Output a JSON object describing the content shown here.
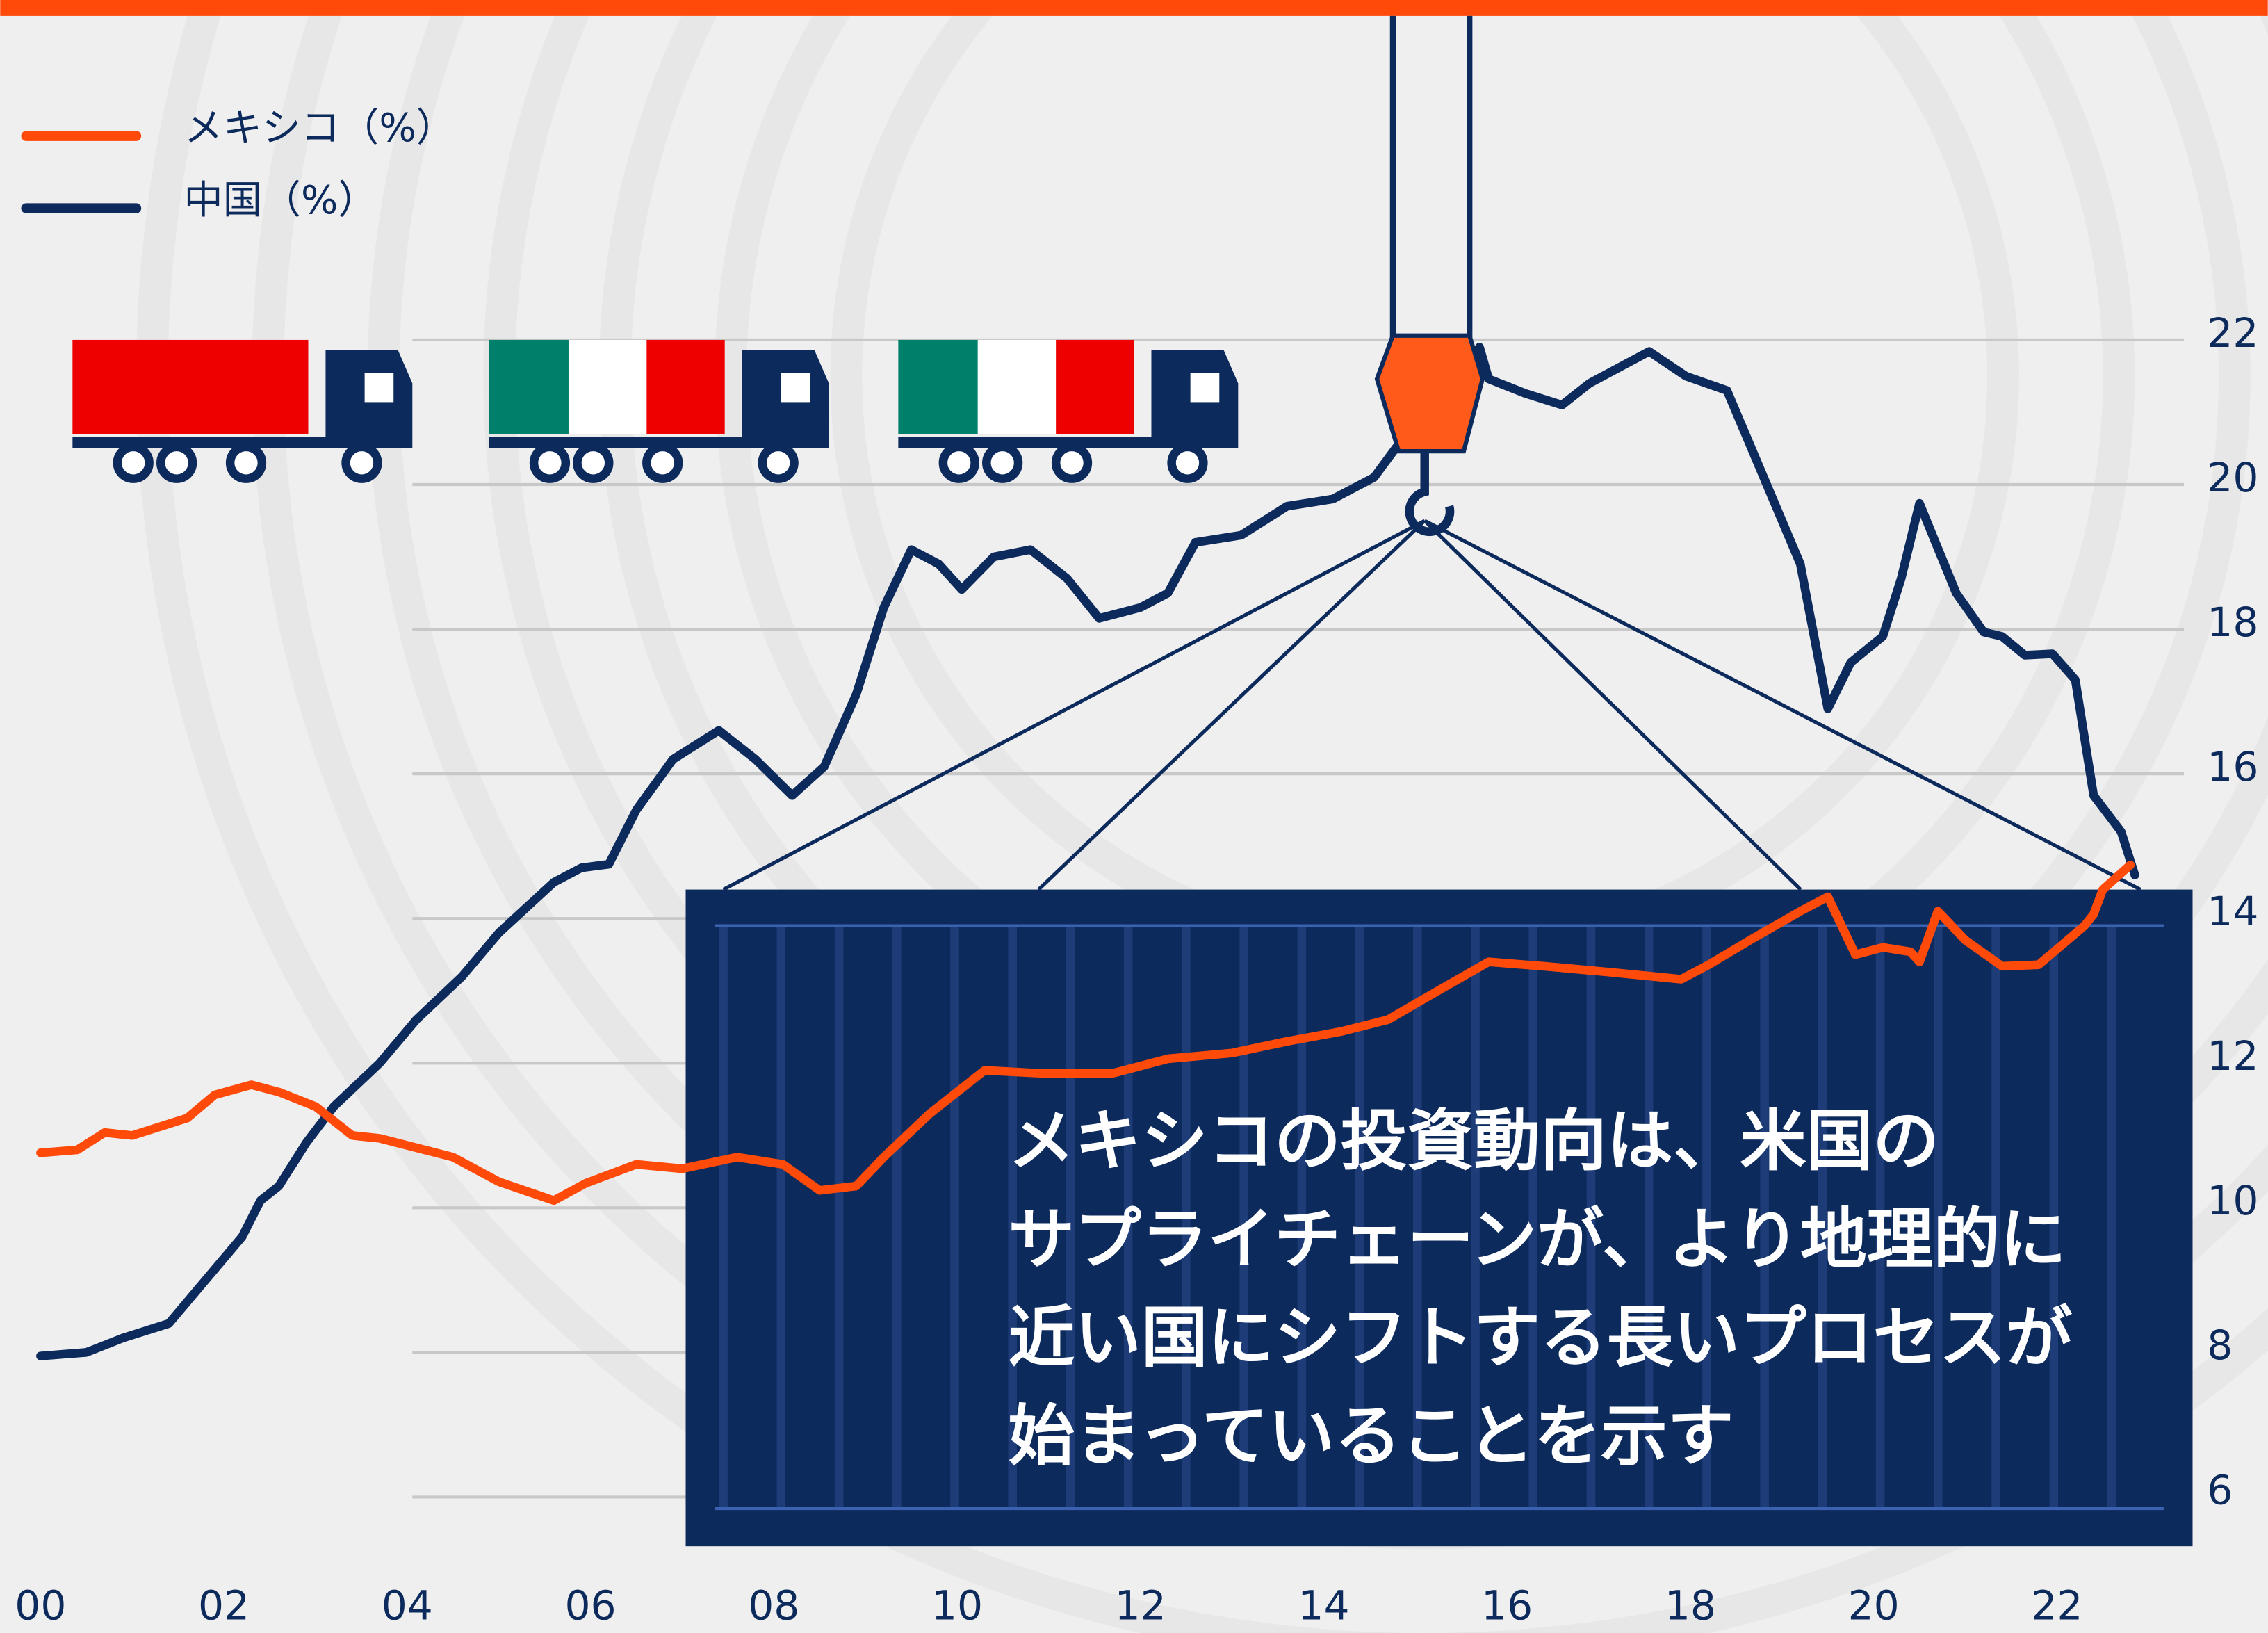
{
  "chart_data": {
    "type": "line",
    "annotation": [
      "メキシコの投資動向は、米国の",
      "サプライチェーンが、より地理的に",
      "近い国にシフトする長いプロセスが",
      "始まっていることを示す"
    ],
    "xlim": [
      1999.56,
      2024.3
    ],
    "ylim": [
      4.12,
      26.7
    ],
    "xticks": [
      {
        "value": 2000,
        "label": "00"
      },
      {
        "value": 2002,
        "label": "02"
      },
      {
        "value": 2004,
        "label": "04"
      },
      {
        "value": 2006,
        "label": "06"
      },
      {
        "value": 2008,
        "label": "08"
      },
      {
        "value": 2010,
        "label": "10"
      },
      {
        "value": 2012,
        "label": "12"
      },
      {
        "value": 2014,
        "label": "14"
      },
      {
        "value": 2016,
        "label": "16"
      },
      {
        "value": 2018,
        "label": "18"
      },
      {
        "value": 2020,
        "label": "20"
      },
      {
        "value": 2022,
        "label": "22"
      }
    ],
    "yticks": [
      6,
      8,
      10,
      12,
      14,
      16,
      18,
      20,
      22
    ],
    "grid": true,
    "legend": "top-left",
    "series": [
      {
        "name": "中国（%）",
        "color": "#0d2a5c",
        "x": [
          2000,
          2000.5,
          2000.9,
          2001.4,
          2001.8,
          2002.2,
          2002.4,
          2002.6,
          2002.9,
          2003.2,
          2003.7,
          2004.1,
          2004.6,
          2005.0,
          2005.6,
          2005.9,
          2006.2,
          2006.5,
          2006.9,
          2007.4,
          2007.8,
          2008.2,
          2008.55,
          2008.9,
          2009.2,
          2009.5,
          2009.8,
          2010.05,
          2010.4,
          2010.8,
          2011.2,
          2011.55,
          2012.0,
          2012.3,
          2012.6,
          2013.1,
          2013.6,
          2014.1,
          2014.55,
          2014.9,
          2015.35,
          2015.7,
          2015.8,
          2016.2,
          2016.6,
          2016.9,
          2017.55,
          2017.95,
          2018.4,
          2018.8,
          2019.2,
          2019.5,
          2019.75,
          2020.1,
          2020.3,
          2020.5,
          2020.9,
          2021.2,
          2021.4,
          2021.65,
          2021.95,
          2022.2,
          2022.4,
          2022.7,
          2022.85
        ],
        "values": [
          7.95,
          8.0,
          8.2,
          8.4,
          9.0,
          9.6,
          10.1,
          10.3,
          10.9,
          11.4,
          12.0,
          12.6,
          13.2,
          13.8,
          14.5,
          14.7,
          14.75,
          15.5,
          16.2,
          16.6,
          16.2,
          15.7,
          16.1,
          17.1,
          18.3,
          19.1,
          18.9,
          18.55,
          19.0,
          19.1,
          18.7,
          18.15,
          18.3,
          18.5,
          19.2,
          19.3,
          19.7,
          19.8,
          20.1,
          20.7,
          21.3,
          21.9,
          21.46,
          21.26,
          21.1,
          21.4,
          21.84,
          21.5,
          21.3,
          20.1,
          18.9,
          16.9,
          17.54,
          17.9,
          18.7,
          19.74,
          18.5,
          17.96,
          17.9,
          17.64,
          17.66,
          17.3,
          15.7,
          15.2,
          14.6
        ]
      },
      {
        "name": "メキシコ（%）",
        "color": "#ff4a0a",
        "x": [
          2000,
          2000.4,
          2000.7,
          2001.0,
          2001.6,
          2001.9,
          2002.3,
          2002.6,
          2003.0,
          2003.4,
          2003.7,
          2004.5,
          2005.0,
          2005.6,
          2005.95,
          2006.5,
          2007.0,
          2007.6,
          2008.1,
          2008.5,
          2008.9,
          2009.2,
          2009.7,
          2010.3,
          2010.9,
          2011.7,
          2012.3,
          2013.0,
          2013.6,
          2014.2,
          2014.7,
          2015.3,
          2015.8,
          2016.4,
          2017.1,
          2017.9,
          2018.2,
          2018.65,
          2019.2,
          2019.5,
          2019.8,
          2020.1,
          2020.4,
          2020.5,
          2020.7,
          2021.0,
          2021.4,
          2021.8,
          2022.3,
          2022.4,
          2022.5,
          2022.8
        ],
        "values": [
          10.76,
          10.8,
          11.04,
          11.0,
          11.24,
          11.56,
          11.7,
          11.6,
          11.4,
          11.0,
          10.96,
          10.7,
          10.36,
          10.1,
          10.34,
          10.6,
          10.54,
          10.7,
          10.6,
          10.24,
          10.3,
          10.7,
          11.3,
          11.9,
          11.86,
          11.86,
          12.06,
          12.14,
          12.3,
          12.44,
          12.6,
          13.04,
          13.4,
          13.34,
          13.26,
          13.16,
          13.36,
          13.7,
          14.1,
          14.3,
          13.5,
          13.6,
          13.54,
          13.4,
          14.1,
          13.7,
          13.34,
          13.36,
          13.9,
          14.06,
          14.4,
          14.74
        ]
      }
    ]
  }
}
